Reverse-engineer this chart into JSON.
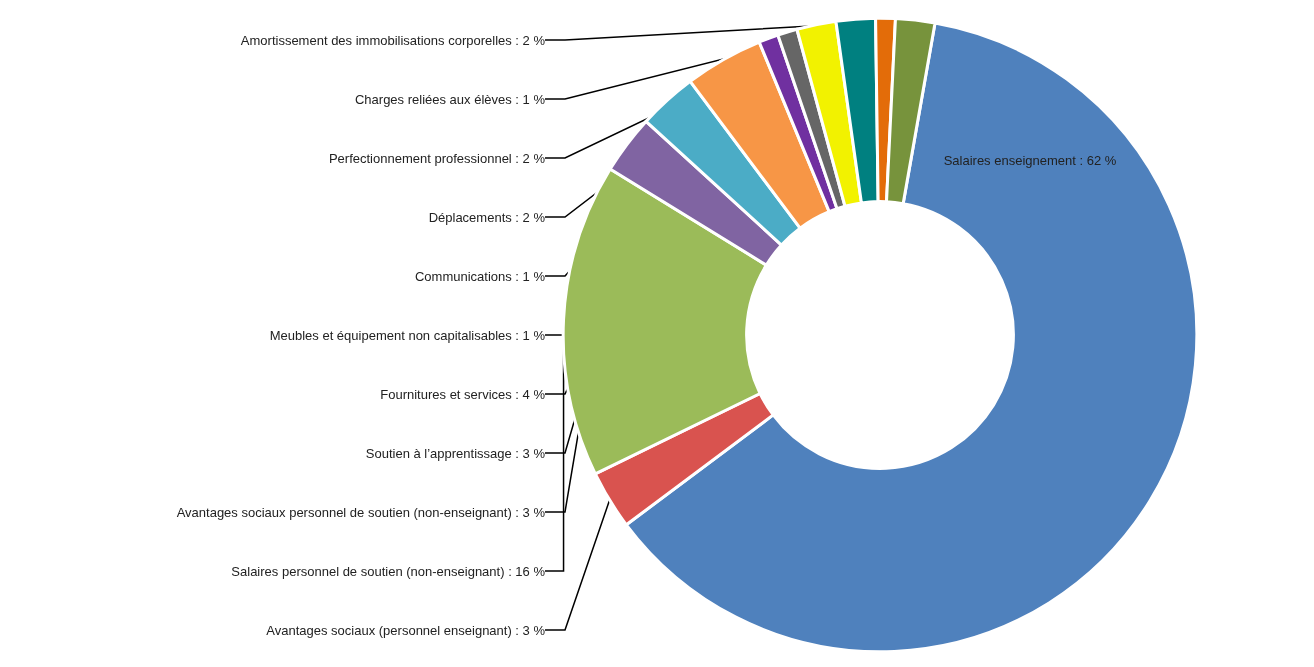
{
  "chart_data": {
    "type": "donut",
    "categories": [
      "Salaires enseignement",
      "Avantages sociaux (personnel enseignant)",
      "Salaires personnel de soutien (non-enseignant)",
      "Avantages sociaux personnel de soutien (non-enseignant)",
      "Soutien à l’apprentissage",
      "Fournitures et services",
      "Meubles et équipement non capitalisables",
      "Communications",
      "Déplacements",
      "Perfectionnement professionnel",
      "Charges reliées aux élèves",
      "Amortissement des immobilisations corporelles"
    ],
    "values": [
      62,
      3,
      16,
      3,
      3,
      4,
      1,
      1,
      2,
      2,
      1,
      2
    ],
    "value_labels": [
      "62 %",
      "3 %",
      "16 %",
      "3 %",
      "3 %",
      "4 %",
      "1 %",
      "1 %",
      "2 %",
      "2 %",
      "1 %",
      "2 %"
    ],
    "colors": [
      "#4f81bd",
      "#d9534f",
      "#9bbb59",
      "#8064a2",
      "#4bacc6",
      "#f79646",
      "#7030a0",
      "#666666",
      "#f2f200",
      "#008080",
      "#e36c09",
      "#77933c"
    ],
    "legend": false
  }
}
